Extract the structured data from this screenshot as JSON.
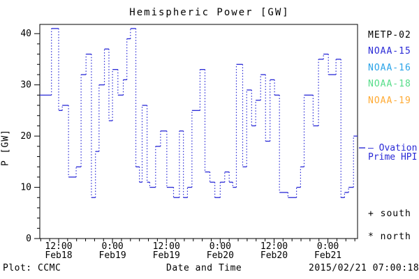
{
  "title": "Hemispheric Power [GW]",
  "axes": {
    "y_label": "P [GW]",
    "x_label": "Date and Time",
    "y_ticks": [
      0,
      10,
      20,
      30,
      40
    ],
    "x_ticks": [
      {
        "t": 12,
        "time": "12:00",
        "date": "Feb18"
      },
      {
        "t": 24,
        "time": "0:00",
        "date": "Feb19"
      },
      {
        "t": 36,
        "time": "12:00",
        "date": "Feb19"
      },
      {
        "t": 48,
        "time": "0:00",
        "date": "Feb20"
      },
      {
        "t": 60,
        "time": "12:00",
        "date": "Feb20"
      },
      {
        "t": 72,
        "time": "0:00",
        "date": "Feb21"
      }
    ]
  },
  "legend": {
    "satellites": [
      {
        "label": "METP-02",
        "color": "#000000"
      },
      {
        "label": "NOAA-15",
        "color": "#2929d6"
      },
      {
        "label": "NOAA-16",
        "color": "#29a3e8"
      },
      {
        "label": "NOAA-18",
        "color": "#55dd88"
      },
      {
        "label": "NOAA-19",
        "color": "#ffaa33"
      }
    ],
    "ovation_line1": "— Ovation",
    "ovation_line2": "Prime HPI",
    "ovation_color": "#2929d6",
    "south_label": "+ south",
    "north_label": "* north"
  },
  "footer": {
    "plot_credit": "Plot: CCMC",
    "timestamp": "2015/02/21 07:00:18"
  },
  "chart_data": {
    "type": "line",
    "style": "steps-post",
    "line_color": "#2929d6",
    "title": "Hemispheric Power [GW]",
    "xlabel": "Date and Time",
    "ylabel": "P [GW]",
    "x_unit": "hours since 2015-02-18 00:00 UT",
    "xlim": [
      7.8,
      78.6
    ],
    "ylim": [
      0,
      41.8
    ],
    "x_minor_step": 2,
    "y_minor_step": 2,
    "x_major_ticks": [
      12,
      24,
      36,
      48,
      60,
      72
    ],
    "y_major_ticks": [
      0,
      10,
      20,
      30,
      40
    ],
    "grid": false,
    "legend_position": "right-outside",
    "steps": [
      [
        7.8,
        28
      ],
      [
        10.4,
        41
      ],
      [
        12.0,
        25
      ],
      [
        12.8,
        26
      ],
      [
        14.2,
        12
      ],
      [
        15.9,
        14
      ],
      [
        17.0,
        32
      ],
      [
        18.1,
        36
      ],
      [
        19.3,
        8
      ],
      [
        20.2,
        17
      ],
      [
        21.0,
        30
      ],
      [
        22.2,
        37
      ],
      [
        23.2,
        23
      ],
      [
        24.0,
        33
      ],
      [
        25.2,
        28
      ],
      [
        26.4,
        31
      ],
      [
        27.2,
        39
      ],
      [
        28.0,
        41
      ],
      [
        29.2,
        14
      ],
      [
        30.0,
        11
      ],
      [
        30.6,
        26
      ],
      [
        31.7,
        11
      ],
      [
        32.3,
        10
      ],
      [
        33.6,
        18
      ],
      [
        34.7,
        21
      ],
      [
        36.1,
        10
      ],
      [
        37.6,
        8
      ],
      [
        38.9,
        21
      ],
      [
        39.8,
        8
      ],
      [
        40.7,
        10
      ],
      [
        41.7,
        25
      ],
      [
        43.5,
        33
      ],
      [
        44.6,
        13
      ],
      [
        45.7,
        11
      ],
      [
        46.8,
        8
      ],
      [
        48.0,
        11
      ],
      [
        49.0,
        13
      ],
      [
        50.0,
        11
      ],
      [
        50.8,
        10
      ],
      [
        51.6,
        34
      ],
      [
        53.0,
        14
      ],
      [
        53.9,
        29
      ],
      [
        55.0,
        22
      ],
      [
        55.9,
        27
      ],
      [
        57.0,
        32
      ],
      [
        58.1,
        19
      ],
      [
        59.1,
        31
      ],
      [
        60.1,
        28
      ],
      [
        61.2,
        9
      ],
      [
        63.1,
        8
      ],
      [
        65.0,
        10
      ],
      [
        65.9,
        14
      ],
      [
        66.7,
        28
      ],
      [
        68.7,
        22
      ],
      [
        69.9,
        35
      ],
      [
        71.0,
        36
      ],
      [
        72.1,
        32
      ],
      [
        73.8,
        35
      ],
      [
        74.9,
        8
      ],
      [
        75.7,
        9
      ],
      [
        76.6,
        10
      ],
      [
        77.7,
        20
      ]
    ]
  }
}
